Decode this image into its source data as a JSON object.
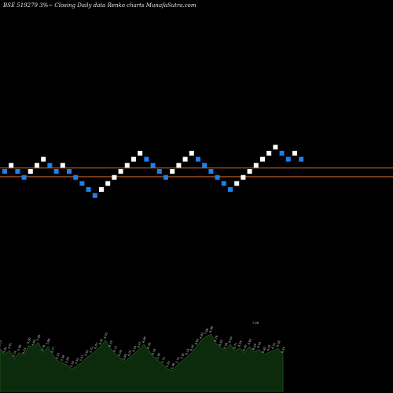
{
  "header": {
    "title": "BSE 519279 3%~ Closing Daily data Renko charts MunafaSutra.com"
  },
  "chart_data": {
    "type": "renko",
    "colors": {
      "up_brick": "#ffffff",
      "down_brick": "#1e7ff0",
      "level_line": "#c86428",
      "volume_fill": "#0c2a0c",
      "volume_stroke": "#1f5a1f",
      "background": "#000000"
    },
    "bricks": [
      {
        "dir": "down",
        "level": 0
      },
      {
        "dir": "up",
        "level": 1
      },
      {
        "dir": "down",
        "level": 0
      },
      {
        "dir": "down",
        "level": -1
      },
      {
        "dir": "up",
        "level": 0
      },
      {
        "dir": "up",
        "level": 1
      },
      {
        "dir": "up",
        "level": 2
      },
      {
        "dir": "down",
        "level": 1
      },
      {
        "dir": "down",
        "level": 0
      },
      {
        "dir": "up",
        "level": 1
      },
      {
        "dir": "down",
        "level": 0
      },
      {
        "dir": "down",
        "level": -1
      },
      {
        "dir": "down",
        "level": -2
      },
      {
        "dir": "down",
        "level": -3
      },
      {
        "dir": "down",
        "level": -4
      },
      {
        "dir": "up",
        "level": -3
      },
      {
        "dir": "up",
        "level": -2
      },
      {
        "dir": "up",
        "level": -1
      },
      {
        "dir": "up",
        "level": 0
      },
      {
        "dir": "up",
        "level": 1
      },
      {
        "dir": "up",
        "level": 2
      },
      {
        "dir": "up",
        "level": 3
      },
      {
        "dir": "down",
        "level": 2
      },
      {
        "dir": "down",
        "level": 1
      },
      {
        "dir": "down",
        "level": 0
      },
      {
        "dir": "down",
        "level": -1
      },
      {
        "dir": "up",
        "level": 0
      },
      {
        "dir": "up",
        "level": 1
      },
      {
        "dir": "up",
        "level": 2
      },
      {
        "dir": "up",
        "level": 3
      },
      {
        "dir": "down",
        "level": 2
      },
      {
        "dir": "down",
        "level": 1
      },
      {
        "dir": "down",
        "level": 0
      },
      {
        "dir": "down",
        "level": -1
      },
      {
        "dir": "down",
        "level": -2
      },
      {
        "dir": "down",
        "level": -3
      },
      {
        "dir": "up",
        "level": -2
      },
      {
        "dir": "up",
        "level": -1
      },
      {
        "dir": "up",
        "level": 0
      },
      {
        "dir": "up",
        "level": 1
      },
      {
        "dir": "up",
        "level": 2
      },
      {
        "dir": "up",
        "level": 3
      },
      {
        "dir": "up",
        "level": 4
      },
      {
        "dir": "down",
        "level": 3
      },
      {
        "dir": "down",
        "level": 2
      },
      {
        "dir": "up",
        "level": 3
      },
      {
        "dir": "down",
        "level": 2
      }
    ],
    "reference_levels": [
      0.55,
      -0.9
    ],
    "volume_values": [
      42,
      36,
      40,
      32,
      38,
      35,
      45,
      43,
      48,
      38,
      44,
      36,
      30,
      28,
      26,
      22,
      25,
      28,
      33,
      36,
      40,
      44,
      50,
      42,
      37,
      33,
      29,
      33,
      37,
      41,
      46,
      40,
      34,
      30,
      26,
      22,
      20,
      26,
      30,
      34,
      38,
      44,
      50,
      54,
      56,
      47,
      43,
      40,
      46,
      40,
      42,
      38,
      44,
      39,
      41,
      36,
      38,
      40,
      42,
      36
    ],
    "volume_labels": [
      "6.17",
      "5.91",
      "5.81",
      "5.74",
      "5.98",
      "6.25",
      "6.50",
      "6.60",
      "5.85",
      "5.76",
      "5.86",
      "5.77",
      "5.53",
      "5.38",
      "5.28",
      "5.18",
      "5.34",
      "5.51",
      "5.62",
      "5.72",
      "6.07",
      "6.32",
      "6.55",
      "6.33",
      "6.12",
      "6.04",
      "5.86",
      "6.01",
      "6.24",
      "6.47",
      "6.66",
      "6.39",
      "6.18",
      "5.95",
      "5.74",
      "5.53",
      "5.46",
      "5.72",
      "5.92",
      "6.18",
      "6.40",
      "6.63",
      "6.82",
      "7.06",
      "6.98",
      "6.79",
      "6.62",
      "6.58",
      "6.64",
      "6.71",
      "6.54",
      "6.50",
      "6.62",
      "6.48",
      "6.55",
      "6.40",
      "6.45",
      "6.52",
      "6.58",
      "6.44"
    ],
    "volume_peak_label": "7.06",
    "volume_max": 60
  }
}
